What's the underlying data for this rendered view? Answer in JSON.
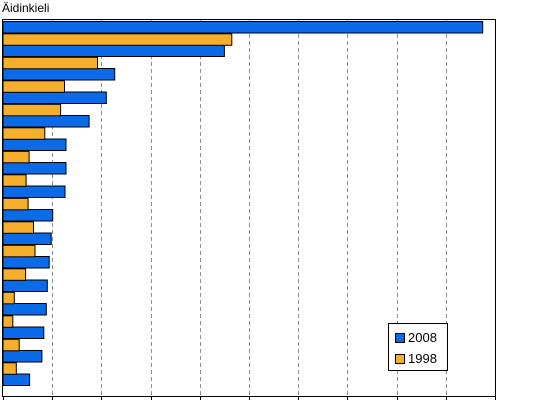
{
  "chart_data": {
    "type": "bar",
    "orientation": "horizontal",
    "title": "Äidinkieli",
    "xlabel": "",
    "ylabel": "",
    "xlim": [
      0,
      10
    ],
    "grid": true,
    "legend_position": "bottom-right",
    "categories": [
      "",
      "",
      "",
      "",
      "",
      "",
      "",
      "",
      "",
      "",
      "",
      "",
      "",
      "",
      "",
      ""
    ],
    "series": [
      {
        "name": "2008",
        "color": "#0a6ae8",
        "values": [
          9.75,
          4.5,
          2.27,
          2.1,
          1.75,
          1.28,
          1.28,
          1.26,
          1.01,
          0.98,
          0.94,
          0.9,
          0.88,
          0.83,
          0.79,
          0.54
        ]
      },
      {
        "name": "1998",
        "color": "#f6ae2d",
        "values": [
          4.65,
          1.92,
          1.25,
          1.17,
          0.85,
          0.53,
          0.47,
          0.51,
          0.62,
          0.65,
          0.46,
          0.23,
          0.2,
          0.33,
          0.27,
          0.0
        ]
      }
    ]
  }
}
